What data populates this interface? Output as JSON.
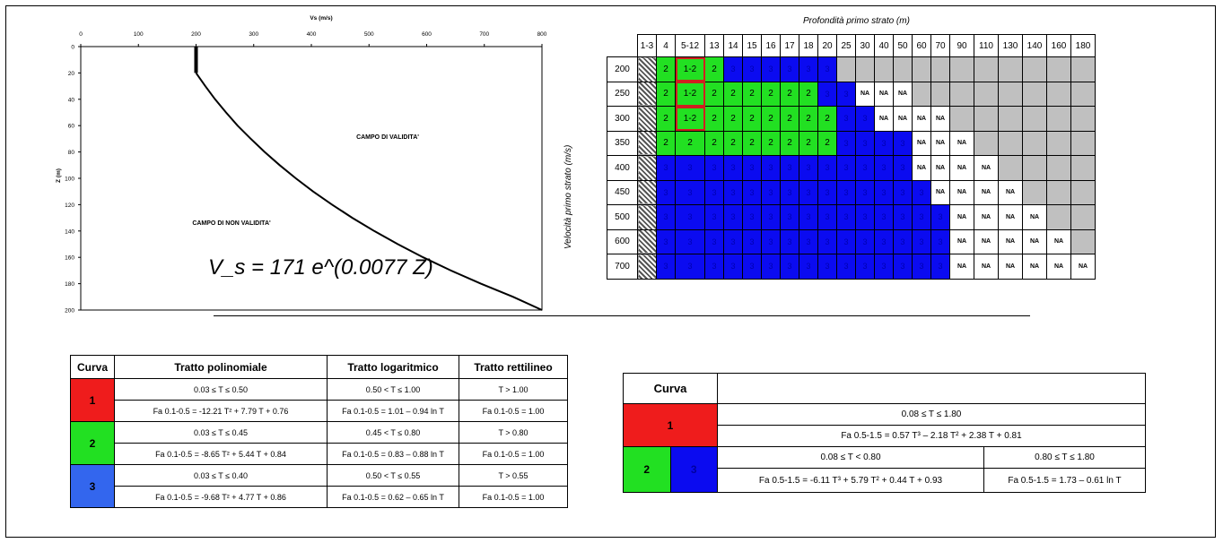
{
  "chart_data": {
    "type": "line",
    "title": "",
    "xlabel": "Vs (m/s)",
    "ylabel": "Z (m)",
    "xlim": [
      0,
      800
    ],
    "ylim": [
      0,
      200
    ],
    "x_ticks": [
      "0",
      "100",
      "200",
      "300",
      "400",
      "500",
      "600",
      "700",
      "800"
    ],
    "y_ticks": [
      "0",
      "20",
      "40",
      "60",
      "80",
      "100",
      "120",
      "140",
      "160",
      "180",
      "200"
    ],
    "equation": "V_s = 171 e^(0.0077 Z)",
    "annotations": [
      "CAMPO DI VALIDITA'",
      "CAMPO DI NON VALIDITA'"
    ],
    "series": [
      {
        "x": [
          200,
          200
        ],
        "y": [
          0,
          20
        ]
      },
      {
        "x": [
          200,
          216,
          233,
          252,
          272,
          295,
          319,
          345,
          373,
          403,
          436,
          471,
          509,
          550,
          594,
          642,
          694,
          750,
          800
        ],
        "y": [
          20,
          30,
          40,
          50,
          60,
          70,
          80,
          90,
          100,
          110,
          120,
          130,
          140,
          150,
          160,
          170,
          180,
          190,
          200
        ]
      }
    ]
  },
  "grid": {
    "title": "Profondità primo strato (m)",
    "ylabel": "Velocità primo strato (m/s)",
    "columns": [
      "1-3",
      "4",
      "5-12",
      "13",
      "14",
      "15",
      "16",
      "17",
      "18",
      "20",
      "25",
      "30",
      "40",
      "50",
      "60",
      "70",
      "90",
      "110",
      "130",
      "140",
      "160",
      "180"
    ],
    "rows": [
      {
        "label": "200",
        "cells": [
          "h",
          "g2",
          "g12",
          "g2",
          "b",
          "b",
          "b",
          "b",
          "b",
          "b",
          "x",
          "x",
          "x",
          "x",
          "x",
          "x",
          "x",
          "x",
          "x",
          "x",
          "x",
          "x"
        ]
      },
      {
        "label": "250",
        "cells": [
          "h",
          "g2",
          "g12",
          "g2",
          "g2",
          "g2",
          "g2",
          "g2",
          "g2",
          "b",
          "b",
          "n",
          "n",
          "n",
          "x",
          "x",
          "x",
          "x",
          "x",
          "x",
          "x",
          "x"
        ]
      },
      {
        "label": "300",
        "cells": [
          "h",
          "g2",
          "g12",
          "g2",
          "g2",
          "g2",
          "g2",
          "g2",
          "g2",
          "g2",
          "b",
          "b",
          "n",
          "n",
          "n",
          "n",
          "x",
          "x",
          "x",
          "x",
          "x",
          "x"
        ]
      },
      {
        "label": "350",
        "cells": [
          "h",
          "g2",
          "g2",
          "g2",
          "g2",
          "g2",
          "g2",
          "g2",
          "g2",
          "g2",
          "b",
          "b",
          "b",
          "b",
          "n",
          "n",
          "n",
          "x",
          "x",
          "x",
          "x",
          "x"
        ]
      },
      {
        "label": "400",
        "cells": [
          "h",
          "b",
          "b",
          "b",
          "b",
          "b",
          "b",
          "b",
          "b",
          "b",
          "b",
          "b",
          "b",
          "b",
          "n",
          "n",
          "n",
          "n",
          "x",
          "x",
          "x",
          "x"
        ]
      },
      {
        "label": "450",
        "cells": [
          "h",
          "b",
          "b",
          "b",
          "b",
          "b",
          "b",
          "b",
          "b",
          "b",
          "b",
          "b",
          "b",
          "b",
          "b",
          "n",
          "n",
          "n",
          "n",
          "x",
          "x",
          "x"
        ]
      },
      {
        "label": "500",
        "cells": [
          "h",
          "b",
          "b",
          "b",
          "b",
          "b",
          "b",
          "b",
          "b",
          "b",
          "b",
          "b",
          "b",
          "b",
          "b",
          "b",
          "n",
          "n",
          "n",
          "n",
          "x",
          "x"
        ]
      },
      {
        "label": "600",
        "cells": [
          "h",
          "b",
          "b",
          "b",
          "b",
          "b",
          "b",
          "b",
          "b",
          "b",
          "b",
          "b",
          "b",
          "b",
          "b",
          "b",
          "n",
          "n",
          "n",
          "n",
          "n",
          "x"
        ]
      },
      {
        "label": "700",
        "cells": [
          "h",
          "b",
          "b",
          "b",
          "b",
          "b",
          "b",
          "b",
          "b",
          "b",
          "b",
          "b",
          "b",
          "b",
          "b",
          "b",
          "n",
          "n",
          "n",
          "n",
          "n",
          "n"
        ]
      }
    ],
    "value_text": {
      "g2": "2",
      "g12": "1-2",
      "b": "3",
      "n": "NA"
    },
    "colors": {
      "green": "#22e022",
      "blue": "#0b0bf0",
      "grey": "#c0c0c0",
      "highlight": "#d02020"
    }
  },
  "table1": {
    "headers": [
      "Curva",
      "Tratto polinomiale",
      "Tratto logaritmico",
      "Tratto rettilineo"
    ],
    "rows": [
      {
        "curve": "1",
        "color": "#ef1c1c",
        "range": [
          "0.03 ≤ T ≤ 0.50",
          "0.50 < T ≤ 1.00",
          "T > 1.00"
        ],
        "formula": [
          "Fa 0.1-0.5 = -12.21 T² + 7.79 T + 0.76",
          "Fa 0.1-0.5 = 1.01 – 0.94 ln T",
          "Fa 0.1-0.5 = 1.00"
        ]
      },
      {
        "curve": "2",
        "color": "#22e022",
        "range": [
          "0.03 ≤ T ≤ 0.45",
          "0.45 < T ≤ 0.80",
          "T > 0.80"
        ],
        "formula": [
          "Fa 0.1-0.5 = -8.65 T² + 5.44 T + 0.84",
          "Fa 0.1-0.5 = 0.83 – 0.88 ln T",
          "Fa 0.1-0.5 = 1.00"
        ]
      },
      {
        "curve": "3",
        "color": "#3366ee",
        "range": [
          "0.03 ≤ T ≤ 0.40",
          "0.50 < T ≤ 0.55",
          "T > 0.55"
        ],
        "formula": [
          "Fa 0.1-0.5 = -9.68 T² + 4.77 T + 0.86",
          "Fa 0.1-0.5 = 0.62 – 0.65 ln T",
          "Fa 0.1-0.5 = 1.00"
        ]
      }
    ]
  },
  "table2": {
    "header": "Curva",
    "curve1": {
      "label": "1",
      "range": "0.08 ≤ T ≤ 1.80",
      "formula": "Fa 0.5-1.5 = 0.57 T³ – 2.18 T² + 2.38 T + 0.81"
    },
    "curve23": {
      "label_a": "2",
      "label_b": "3",
      "range_a": "0.08 ≤ T < 0.80",
      "range_b": "0.80 ≤ T ≤ 1.80",
      "formula_a": "Fa 0.5-1.5 = -6.11 T³ + 5.79 T² + 0.44 T + 0.93",
      "formula_b": "Fa 0.5-1.5 = 1.73 – 0.61 ln T"
    }
  }
}
